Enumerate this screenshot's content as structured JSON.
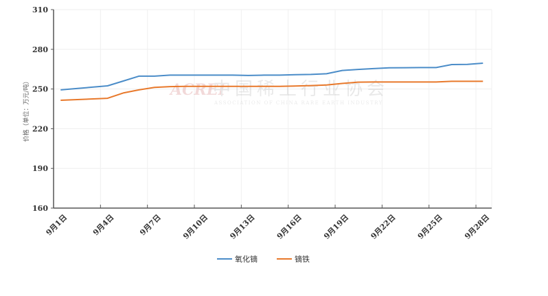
{
  "chart_data": {
    "type": "line",
    "title": "",
    "ylabel": "价格（单位：万元/吨）",
    "xlabel": "",
    "ylim": [
      160,
      310
    ],
    "yticks": [
      160,
      190,
      220,
      250,
      280,
      310
    ],
    "xlim_days": [
      1,
      28.8
    ],
    "xtick_days": [
      1,
      4,
      7,
      10,
      13,
      16,
      19,
      22,
      25,
      28
    ],
    "xtick_labels": [
      "9月1日",
      "9月4日",
      "9月7日",
      "9月10日",
      "9月13日",
      "9月16日",
      "9月19日",
      "9月22日",
      "9月25日",
      "9月28日"
    ],
    "x_days": [
      1,
      4,
      5,
      6,
      7,
      8,
      9,
      10,
      11,
      12,
      13,
      14,
      15,
      16,
      17,
      18,
      19,
      20,
      21,
      22,
      23,
      24,
      25,
      26,
      27,
      28
    ],
    "series": [
      {
        "name": "氧化镝",
        "color": "#4a8cc8",
        "values": [
          249.3,
          252.4,
          256,
          259.7,
          259.7,
          260.5,
          260.5,
          260.5,
          260.5,
          260.5,
          260.2,
          260.5,
          260.5,
          260.8,
          261,
          261.5,
          264,
          264.8,
          265.4,
          266,
          266.1,
          266.2,
          266.2,
          268.5,
          268.6,
          269.5
        ]
      },
      {
        "name": "镝铁",
        "color": "#e8782a",
        "values": [
          241.5,
          243,
          247,
          249.3,
          251.2,
          251.8,
          252,
          252,
          252,
          252,
          252,
          252,
          252,
          252.3,
          252.6,
          253,
          254.2,
          255.2,
          255.3,
          255.3,
          255.3,
          255.3,
          255.3,
          255.8,
          255.8,
          255.8
        ]
      }
    ],
    "legend": "bottom",
    "grid": true,
    "watermark": {
      "logo": "ACREI",
      "name": "中国稀土行业协会",
      "english": "ASSOCIATION OF CHINA RARE EARTH INDUSTRY"
    }
  }
}
